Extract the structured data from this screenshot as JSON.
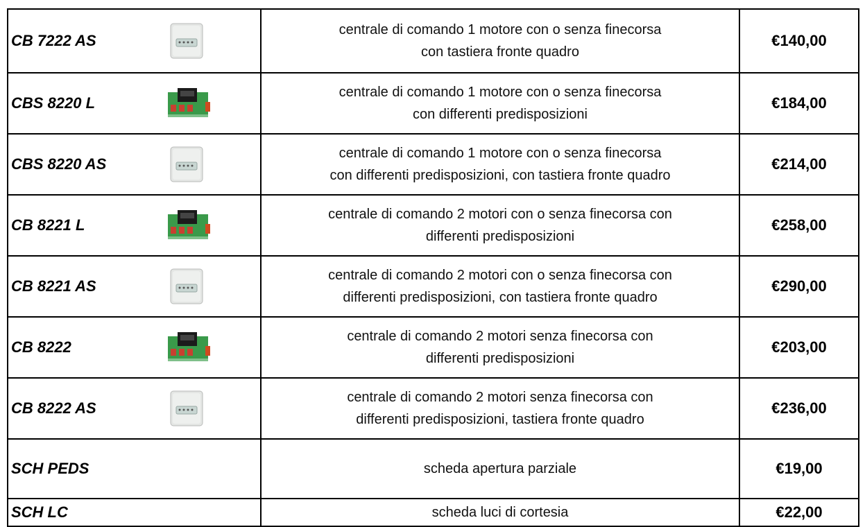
{
  "table": {
    "rows": [
      {
        "code": "CB 7222 AS",
        "description": [
          "centrale di comando 1 motore con o senza finecorsa",
          "con tastiera fronte quadro"
        ],
        "price": "€140,00"
      },
      {
        "code": "CBS 8220 L",
        "description": [
          "centrale di comando 1 motore con o senza finecorsa",
          "con differenti predisposizioni"
        ],
        "price": "€184,00"
      },
      {
        "code": "CBS 8220 AS",
        "description": [
          "centrale di comando 1 motore con o senza finecorsa",
          "con differenti predisposizioni, con tastiera fronte quadro"
        ],
        "price": "€214,00"
      },
      {
        "code": "CB 8221 L",
        "description": [
          "centrale di comando 2 motori con o senza finecorsa con",
          "differenti predisposizioni"
        ],
        "price": "€258,00"
      },
      {
        "code": "CB 8221 AS",
        "description": [
          "centrale di comando 2 motori con o senza finecorsa con",
          "differenti predisposizioni, con tastiera fronte quadro"
        ],
        "price": "€290,00"
      },
      {
        "code": "CB 8222",
        "description": [
          "centrale di comando 2 motori senza finecorsa con",
          "differenti predisposizioni"
        ],
        "price": "€203,00"
      },
      {
        "code": "CB 8222 AS",
        "description": [
          "centrale di comando 2 motori senza finecorsa con",
          "differenti predisposizioni, tastiera fronte quadro"
        ],
        "price": "€236,00"
      },
      {
        "code": "SCH PEDS",
        "description": [
          "scheda apertura parziale"
        ],
        "price": "€19,00"
      },
      {
        "code": "SCH LC",
        "description": [
          "scheda luci di cortesia"
        ],
        "price": "€22,00"
      }
    ]
  }
}
